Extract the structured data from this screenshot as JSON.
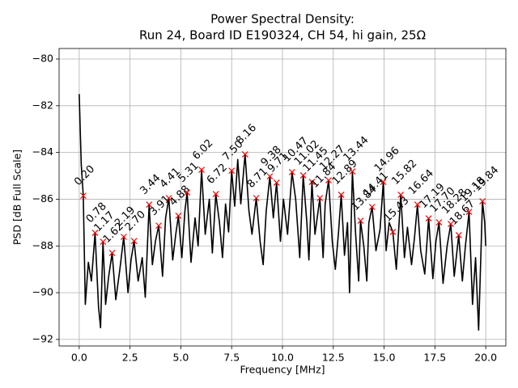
{
  "chart_data": {
    "type": "line",
    "title": "Power Spectral Density:",
    "subtitle": "Run 24, Board ID E190324, CH 54, hi gain, 25Ω",
    "xlabel": "Frequency [MHz]",
    "ylabel": "PSD [dB Full Scale]",
    "xlim": [
      -0.99,
      20.99
    ],
    "ylim": [
      -92.28,
      -79.55
    ],
    "xticks": [
      {
        "value": 0,
        "label": "0.0"
      },
      {
        "value": 2.5,
        "label": "2.5"
      },
      {
        "value": 5,
        "label": "5.0"
      },
      {
        "value": 7.5,
        "label": "7.5"
      },
      {
        "value": 10,
        "label": "10.0"
      },
      {
        "value": 12.5,
        "label": "12.5"
      },
      {
        "value": 15,
        "label": "15.0"
      },
      {
        "value": 17.5,
        "label": "17.5"
      },
      {
        "value": 20,
        "label": "20.0"
      }
    ],
    "yticks": [
      {
        "value": -92,
        "label": "−92"
      },
      {
        "value": -90,
        "label": "−90"
      },
      {
        "value": -88,
        "label": "−88"
      },
      {
        "value": -86,
        "label": "−86"
      },
      {
        "value": -84,
        "label": "−84"
      },
      {
        "value": -82,
        "label": "−82"
      },
      {
        "value": -80,
        "label": "−80"
      }
    ],
    "grid": true,
    "series": [
      {
        "color": "#000000",
        "x": [
          0.0,
          0.1,
          0.2,
          0.3,
          0.45,
          0.6,
          0.78,
          0.95,
          1.05,
          1.17,
          1.3,
          1.45,
          1.62,
          1.8,
          2.0,
          2.19,
          2.4,
          2.55,
          2.7,
          2.9,
          3.1,
          3.25,
          3.44,
          3.6,
          3.75,
          3.91,
          4.1,
          4.25,
          4.41,
          4.6,
          4.75,
          4.88,
          5.05,
          5.2,
          5.31,
          5.5,
          5.7,
          5.85,
          6.02,
          6.2,
          6.4,
          6.55,
          6.72,
          6.9,
          7.05,
          7.2,
          7.35,
          7.5,
          7.65,
          7.8,
          7.95,
          8.16,
          8.35,
          8.5,
          8.71,
          8.9,
          9.05,
          9.2,
          9.38,
          9.55,
          9.71,
          9.9,
          10.05,
          10.25,
          10.47,
          10.65,
          10.85,
          11.02,
          11.2,
          11.3,
          11.45,
          11.6,
          11.84,
          12.0,
          12.1,
          12.27,
          12.45,
          12.6,
          12.75,
          12.89,
          13.05,
          13.2,
          13.3,
          13.44,
          13.6,
          13.75,
          13.84,
          14.0,
          14.15,
          14.25,
          14.41,
          14.6,
          14.8,
          14.96,
          15.1,
          15.25,
          15.43,
          15.6,
          15.82,
          16.0,
          16.15,
          16.35,
          16.5,
          16.64,
          16.8,
          17.0,
          17.19,
          17.4,
          17.55,
          17.7,
          17.9,
          18.1,
          18.28,
          18.45,
          18.67,
          18.85,
          19.0,
          19.18,
          19.35,
          19.5,
          19.65,
          19.84,
          19.95,
          20.0
        ],
        "values": [
          -81.5,
          -84.5,
          -85.85,
          -90.5,
          -88.7,
          -89.5,
          -87.44,
          -90.6,
          -91.5,
          -87.82,
          -90.5,
          -89.3,
          -88.3,
          -90.3,
          -89.0,
          -87.61,
          -90.0,
          -88.6,
          -87.79,
          -89.5,
          -88.5,
          -90.2,
          -86.23,
          -88.8,
          -87.8,
          -87.13,
          -89.3,
          -86.8,
          -85.95,
          -88.6,
          -87.5,
          -86.71,
          -88.5,
          -86.5,
          -85.71,
          -88.7,
          -86.8,
          -88.0,
          -84.74,
          -87.5,
          -86.0,
          -88.3,
          -85.78,
          -87.0,
          -88.5,
          -86.2,
          -87.4,
          -84.78,
          -86.3,
          -84.3,
          -86.2,
          -84.08,
          -86.5,
          -87.5,
          -85.95,
          -87.8,
          -88.8,
          -86.5,
          -85.02,
          -86.8,
          -85.29,
          -87.8,
          -86.0,
          -87.5,
          -84.84,
          -86.0,
          -88.5,
          -84.98,
          -87.0,
          -88.6,
          -85.26,
          -87.5,
          -85.95,
          -88.5,
          -86.2,
          -85.19,
          -87.8,
          -89.0,
          -87.5,
          -85.81,
          -88.4,
          -87.0,
          -90.0,
          -84.81,
          -87.5,
          -89.5,
          -86.92,
          -88.0,
          -89.5,
          -87.0,
          -86.33,
          -88.2,
          -87.3,
          -85.26,
          -88.2,
          -87.0,
          -87.4,
          -89.0,
          -85.81,
          -88.5,
          -87.2,
          -88.8,
          -87.6,
          -86.23,
          -88.2,
          -89.2,
          -86.82,
          -89.4,
          -87.8,
          -86.99,
          -89.6,
          -88.0,
          -87.06,
          -89.3,
          -87.54,
          -89.5,
          -88.0,
          -86.54,
          -90.5,
          -88.5,
          -91.6,
          -86.09,
          -87.0,
          -88.0
        ]
      }
    ],
    "markers": {
      "color": "#ff0000",
      "x": [
        0.2,
        0.78,
        1.17,
        1.62,
        2.19,
        2.7,
        3.44,
        3.91,
        4.41,
        4.88,
        5.31,
        6.02,
        6.72,
        7.5,
        8.16,
        8.71,
        9.38,
        9.71,
        10.47,
        11.02,
        11.45,
        11.84,
        12.27,
        12.89,
        13.44,
        13.84,
        14.41,
        14.96,
        15.43,
        15.82,
        16.64,
        17.19,
        17.7,
        18.28,
        18.67,
        19.18,
        19.84
      ],
      "values": [
        -85.85,
        -87.44,
        -87.82,
        -88.3,
        -87.61,
        -87.79,
        -86.23,
        -87.13,
        -85.95,
        -86.71,
        -85.71,
        -84.74,
        -85.78,
        -84.78,
        -84.08,
        -85.95,
        -85.02,
        -85.29,
        -84.84,
        -84.98,
        -85.26,
        -85.95,
        -85.19,
        -85.81,
        -84.81,
        -86.92,
        -86.33,
        -85.26,
        -87.4,
        -85.81,
        -86.23,
        -86.82,
        -86.99,
        -87.06,
        -87.54,
        -86.54,
        -86.09
      ],
      "labels": [
        "0.20",
        "0.78",
        "1.17",
        "1.62",
        "2.19",
        "2.70",
        "3.44",
        "3.91",
        "4.41",
        "4.88",
        "5.31",
        "6.02",
        "6.72",
        "7.50",
        "8.16",
        "8.71",
        "9.38",
        "9.71",
        "10.47",
        "11.02",
        "11.45",
        "11.84",
        "12.27",
        "12.89",
        "13.44",
        "13.84",
        "14.41",
        "14.96",
        "15.43",
        "15.82",
        "16.64",
        "17.19",
        "17.70",
        "18.28",
        "18.67",
        "19.18",
        "19.84"
      ]
    }
  }
}
